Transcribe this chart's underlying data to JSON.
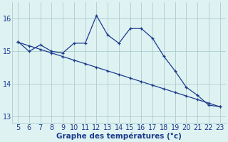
{
  "xlabel": "Graphe des températures (°c)",
  "x_values": [
    5,
    6,
    7,
    8,
    9,
    10,
    11,
    12,
    13,
    14,
    15,
    16,
    17,
    18,
    19,
    20,
    21,
    22,
    23
  ],
  "y_curve": [
    15.3,
    15.0,
    15.2,
    15.0,
    14.95,
    15.25,
    15.25,
    16.1,
    15.5,
    15.25,
    15.7,
    15.7,
    15.4,
    14.85,
    14.4,
    13.9,
    13.65,
    13.35,
    13.3
  ],
  "y_linear": [
    15.28,
    15.17,
    15.06,
    14.95,
    14.84,
    14.73,
    14.62,
    14.51,
    14.4,
    14.29,
    14.18,
    14.07,
    13.96,
    13.85,
    13.74,
    13.63,
    13.52,
    13.41,
    13.3
  ],
  "line_color": "#1a3a8c",
  "bg_color": "#dff2f2",
  "grid_color": "#aacece",
  "ylim": [
    12.8,
    16.5
  ],
  "yticks": [
    13,
    14,
    15,
    16
  ],
  "xlim": [
    4.5,
    23.5
  ],
  "xticks": [
    5,
    6,
    7,
    8,
    9,
    10,
    11,
    12,
    13,
    14,
    15,
    16,
    17,
    18,
    19,
    20,
    21,
    22,
    23
  ],
  "xlabel_fontsize": 7.5,
  "tick_fontsize": 7,
  "marker_size": 3.5,
  "line_width": 0.9
}
